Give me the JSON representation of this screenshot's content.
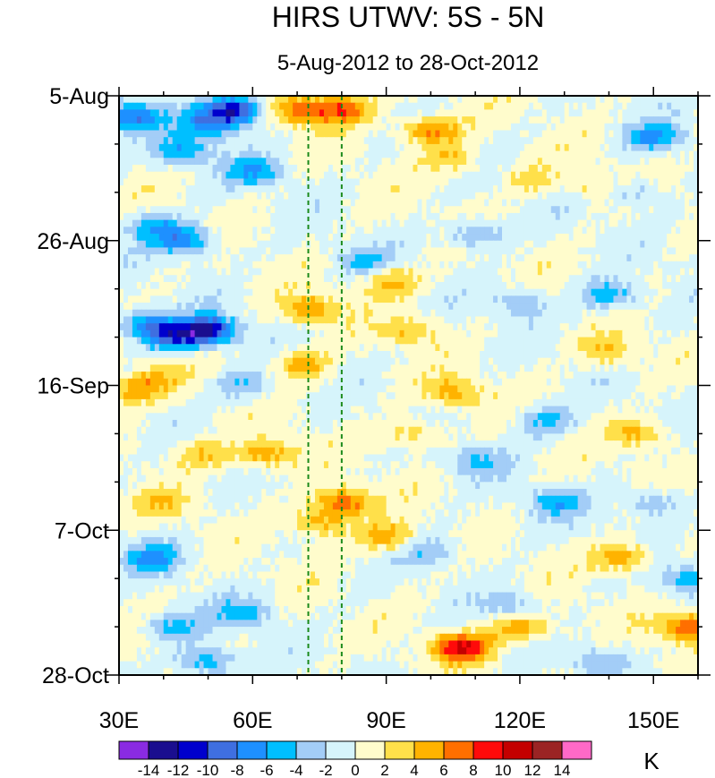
{
  "chart_data": {
    "type": "heatmap",
    "title": "HIRS UTWV: 5S - 5N",
    "subtitle": "5-Aug-2012 to 28-Oct-2012",
    "x_axis": {
      "range": [
        30,
        160
      ],
      "tick_labels": [
        "30E",
        "60E",
        "90E",
        "120E",
        "150E"
      ],
      "tick_values": [
        30,
        60,
        90,
        120,
        150
      ],
      "minor_step": 10
    },
    "y_axis": {
      "range_days": [
        0,
        84
      ],
      "tick_labels": [
        "5-Aug",
        "26-Aug",
        "16-Sep",
        "7-Oct",
        "28-Oct"
      ],
      "tick_values_days": [
        0,
        21,
        42,
        63,
        84
      ],
      "minor_step_days": 7,
      "direction": "time increases downward"
    },
    "reference_lines": [
      {
        "longitude": 72.5,
        "style": "dashed",
        "color": "#1a8a1a"
      },
      {
        "longitude": 80,
        "style": "dashed",
        "color": "#1a8a1a"
      }
    ],
    "colorbar": {
      "unit": "K",
      "levels": [
        -14,
        -12,
        -10,
        -8,
        -6,
        -4,
        -2,
        0,
        2,
        4,
        6,
        8,
        10,
        12,
        14
      ],
      "level_labels": [
        "-14",
        "-12",
        "-10",
        "-8",
        "-6",
        "-4",
        "-2",
        "0",
        "2",
        "4",
        "6",
        "8",
        "10",
        "12",
        "14"
      ],
      "colors": [
        "#8a2be2",
        "#1a0e8f",
        "#0000cd",
        "#3f6fe0",
        "#1e90ff",
        "#00bfff",
        "#a3cdf7",
        "#d6f4fb",
        "#fffccc",
        "#ffe04a",
        "#ffb300",
        "#ff6f00",
        "#ff0a0a",
        "#c40000",
        "#9b2424",
        "#ff69c7"
      ]
    },
    "features": [
      {
        "lon": 33,
        "day": 3,
        "value": -8
      },
      {
        "lon": 56,
        "day": 2,
        "value": -12
      },
      {
        "lon": 50,
        "day": 4,
        "value": -7
      },
      {
        "lon": 44,
        "day": 8,
        "value": -6
      },
      {
        "lon": 61,
        "day": 11,
        "value": -6
      },
      {
        "lon": 80,
        "day": 2,
        "value": 8
      },
      {
        "lon": 70,
        "day": 2,
        "value": 7
      },
      {
        "lon": 100,
        "day": 5,
        "value": 7
      },
      {
        "lon": 105,
        "day": 9,
        "value": 4
      },
      {
        "lon": 150,
        "day": 6,
        "value": -6
      },
      {
        "lon": 145,
        "day": 14,
        "value": -4
      },
      {
        "lon": 123,
        "day": 12,
        "value": 3
      },
      {
        "lon": 137,
        "day": 13,
        "value": 3
      },
      {
        "lon": 45,
        "day": 21,
        "value": -7
      },
      {
        "lon": 38,
        "day": 19,
        "value": -5
      },
      {
        "lon": 110,
        "day": 20,
        "value": -5
      },
      {
        "lon": 85,
        "day": 24,
        "value": -4
      },
      {
        "lon": 91,
        "day": 27,
        "value": 5
      },
      {
        "lon": 73,
        "day": 31,
        "value": 6
      },
      {
        "lon": 140,
        "day": 29,
        "value": -6
      },
      {
        "lon": 120,
        "day": 30,
        "value": -4
      },
      {
        "lon": 50,
        "day": 34,
        "value": -12
      },
      {
        "lon": 42,
        "day": 35,
        "value": -8
      },
      {
        "lon": 36,
        "day": 33,
        "value": -6
      },
      {
        "lon": 95,
        "day": 34,
        "value": 4
      },
      {
        "lon": 140,
        "day": 37,
        "value": 4
      },
      {
        "lon": 71,
        "day": 39,
        "value": 5
      },
      {
        "lon": 32,
        "day": 43,
        "value": 5
      },
      {
        "lon": 38,
        "day": 41,
        "value": 4
      },
      {
        "lon": 58,
        "day": 42,
        "value": -4
      },
      {
        "lon": 105,
        "day": 43,
        "value": 5
      },
      {
        "lon": 96,
        "day": 49,
        "value": 4
      },
      {
        "lon": 147,
        "day": 49,
        "value": 5
      },
      {
        "lon": 126,
        "day": 47,
        "value": -5
      },
      {
        "lon": 63,
        "day": 52,
        "value": 6
      },
      {
        "lon": 48,
        "day": 52,
        "value": 4
      },
      {
        "lon": 110,
        "day": 53,
        "value": -4
      },
      {
        "lon": 80,
        "day": 59,
        "value": 8
      },
      {
        "lon": 90,
        "day": 64,
        "value": 6
      },
      {
        "lon": 75,
        "day": 62,
        "value": 5
      },
      {
        "lon": 40,
        "day": 59,
        "value": 3
      },
      {
        "lon": 128,
        "day": 59,
        "value": -5
      },
      {
        "lon": 150,
        "day": 59,
        "value": -4
      },
      {
        "lon": 38,
        "day": 67,
        "value": -6
      },
      {
        "lon": 100,
        "day": 66,
        "value": -4
      },
      {
        "lon": 143,
        "day": 67,
        "value": 6
      },
      {
        "lon": 158,
        "day": 70,
        "value": -5
      },
      {
        "lon": 58,
        "day": 75,
        "value": -5
      },
      {
        "lon": 42,
        "day": 77,
        "value": -5
      },
      {
        "lon": 118,
        "day": 74,
        "value": -4
      },
      {
        "lon": 107,
        "day": 80,
        "value": 10
      },
      {
        "lon": 120,
        "day": 77,
        "value": 6
      },
      {
        "lon": 158,
        "day": 77,
        "value": 8
      },
      {
        "lon": 50,
        "day": 82,
        "value": -6
      },
      {
        "lon": 138,
        "day": 82,
        "value": -4
      }
    ]
  }
}
